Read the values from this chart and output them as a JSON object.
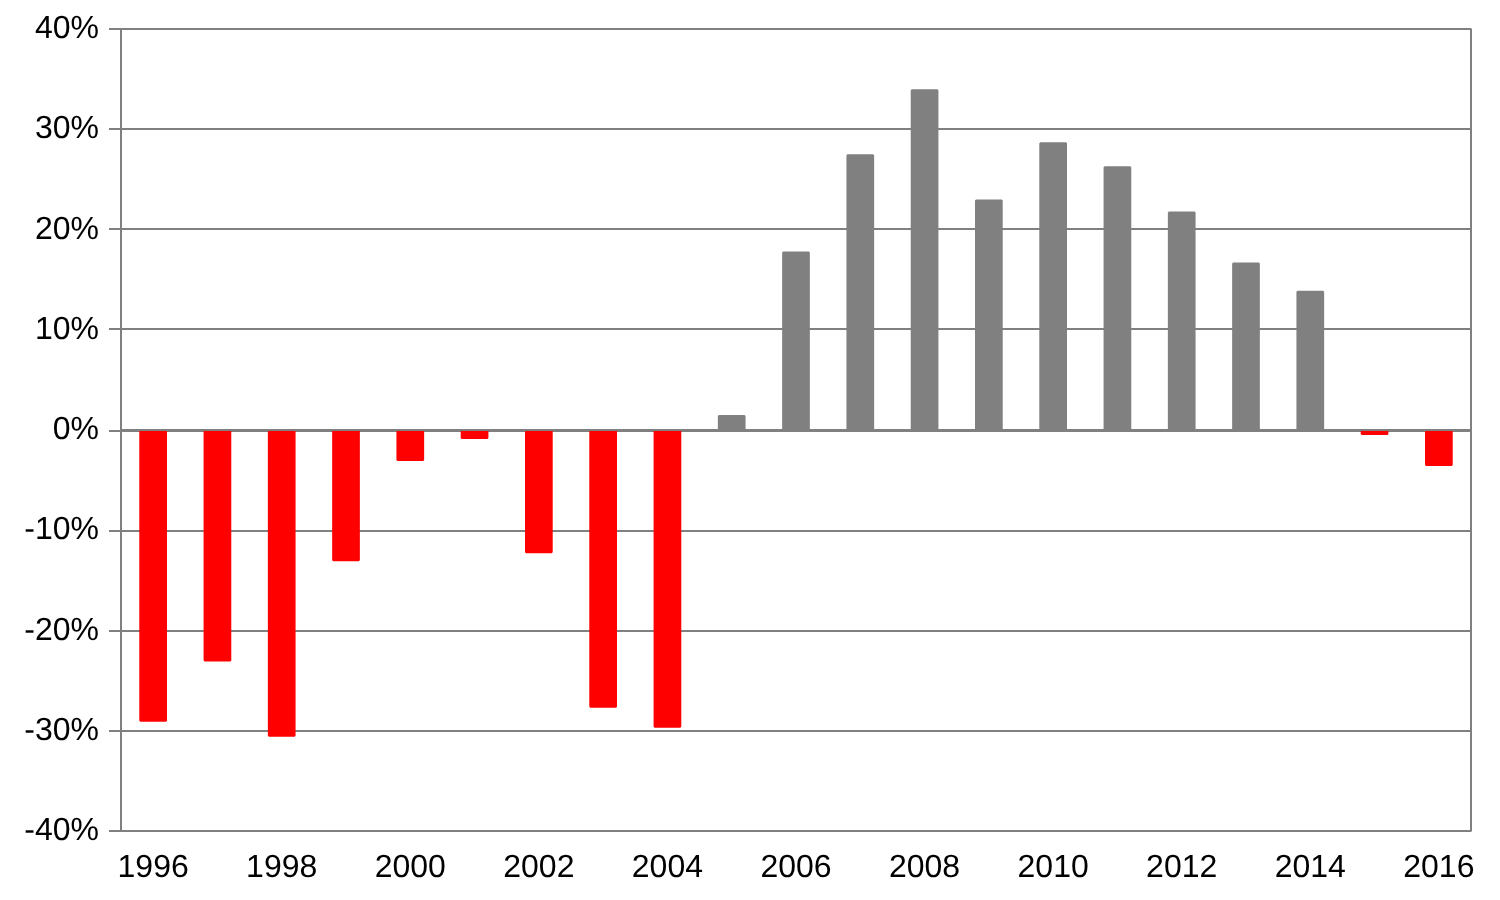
{
  "chart_data": {
    "type": "bar",
    "categories": [
      "1996",
      null,
      "1998",
      null,
      "2000",
      null,
      "2002",
      null,
      "2004",
      null,
      "2006",
      null,
      "2008",
      null,
      "2010",
      null,
      "2012",
      null,
      "2014",
      null,
      "2016"
    ],
    "values": [
      -29,
      -23,
      -30.5,
      -13,
      -3,
      -0.8,
      -12.2,
      -27.6,
      -29.6,
      1.4,
      17.7,
      27.4,
      33.9,
      22.9,
      28.6,
      26.2,
      21.7,
      16.6,
      13.8,
      -0.4,
      -3.5
    ],
    "colors": [
      "#ff0000",
      "#ff0000",
      "#ff0000",
      "#ff0000",
      "#ff0000",
      "#ff0000",
      "#ff0000",
      "#ff0000",
      "#ff0000",
      "#808080",
      "#808080",
      "#808080",
      "#808080",
      "#808080",
      "#808080",
      "#808080",
      "#808080",
      "#808080",
      "#808080",
      "#ff0000",
      "#ff0000"
    ],
    "ylim": [
      -40,
      40
    ],
    "yticks": [
      {
        "value": -40,
        "label": "-40%"
      },
      {
        "value": -30,
        "label": "-30%"
      },
      {
        "value": -20,
        "label": "-20%"
      },
      {
        "value": -10,
        "label": "-10%"
      },
      {
        "value": 0,
        "label": "0%"
      },
      {
        "value": 10,
        "label": "10%"
      },
      {
        "value": 20,
        "label": "20%"
      },
      {
        "value": 30,
        "label": "30%"
      },
      {
        "value": 40,
        "label": "40%"
      }
    ],
    "grid": "y"
  }
}
